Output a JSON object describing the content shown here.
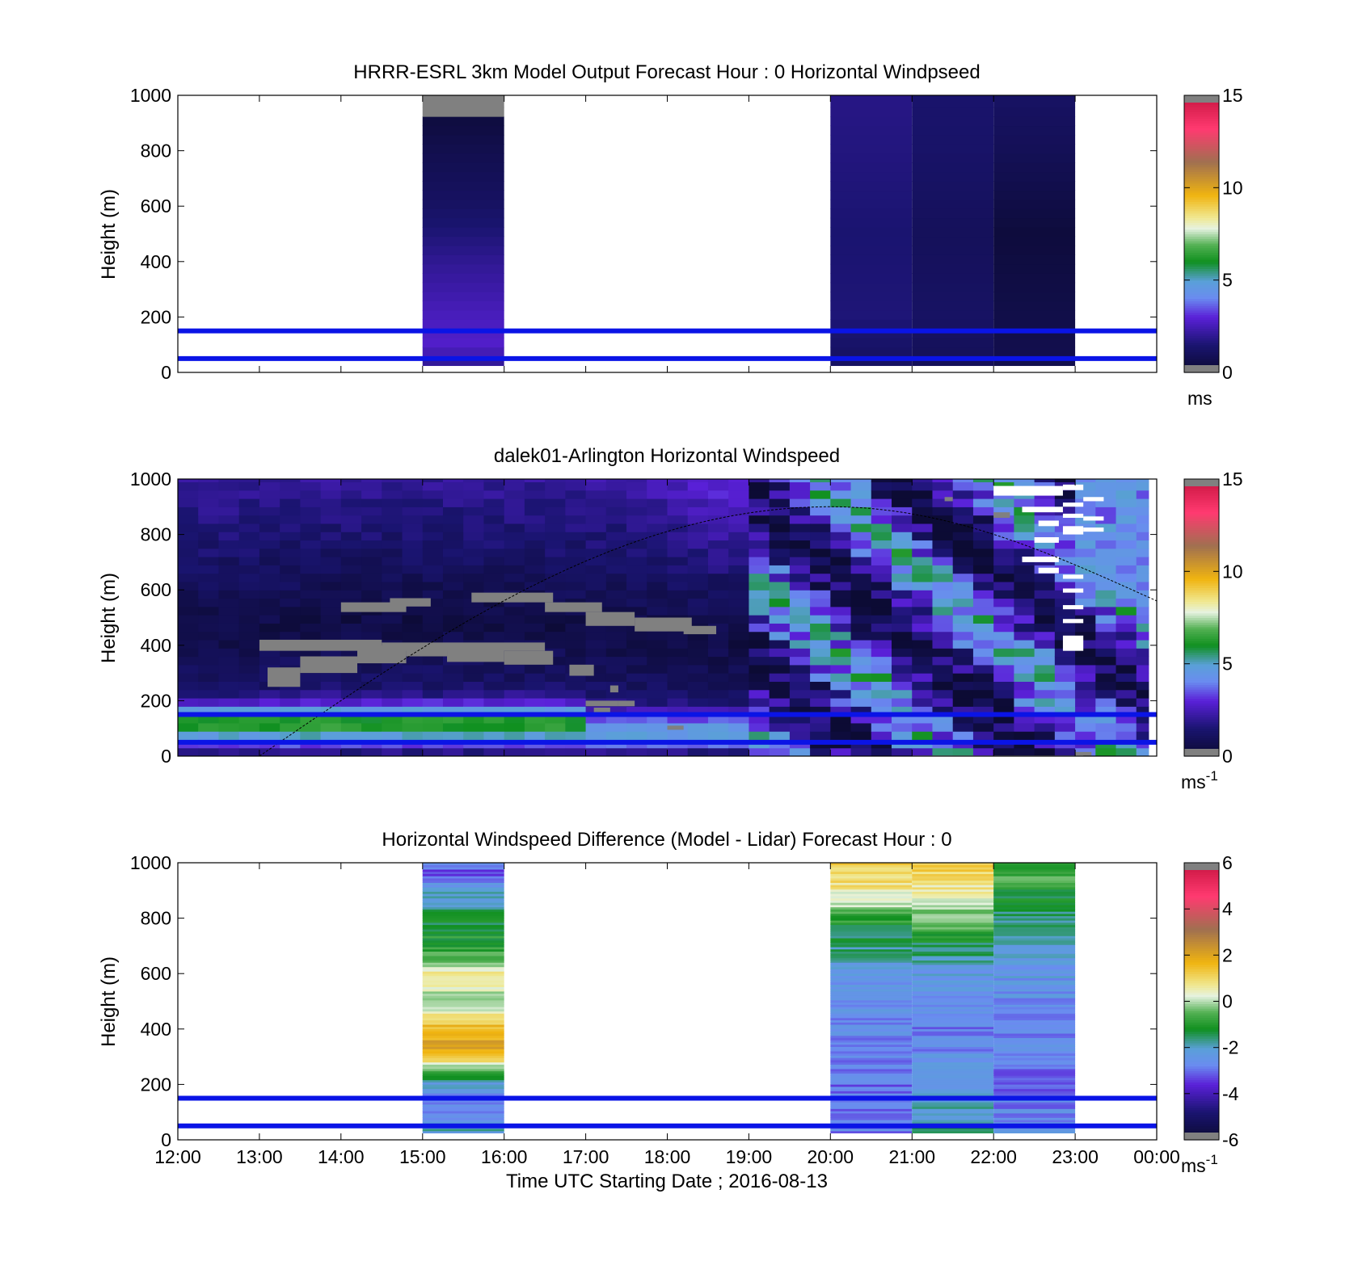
{
  "colors": {
    "reference_line": "#0a14e6",
    "missing": "#808080",
    "axis": "#000000"
  },
  "chart_data": [
    {
      "type": "heatmap",
      "id": "model",
      "title": "HRRR-ESRL 3km Model Output   Forecast Hour : 0 Horizontal Windpseed",
      "ylabel": "Height (m)",
      "ylim": [
        0,
        1000
      ],
      "yticks": [
        "0",
        "200",
        "400",
        "600",
        "800",
        "1000"
      ],
      "xlim": [
        12,
        24
      ],
      "reference_lines_m": [
        50,
        150
      ],
      "colorbar": {
        "min": 0,
        "max": 15,
        "ticks": [
          "0",
          "5",
          "10",
          "15"
        ],
        "unit": "ms",
        "unit_sup": ""
      },
      "columns": [
        {
          "x_start": 15,
          "x_end": 16,
          "profile": [
            [
              25,
              1.9
            ],
            [
              100,
              2.8
            ],
            [
              200,
              2.6
            ],
            [
              400,
              2.0
            ],
            [
              600,
              1.2
            ],
            [
              800,
              0.7
            ],
            [
              900,
              0.4
            ]
          ],
          "missing_above": 900
        },
        {
          "x_start": 20,
          "x_end": 21,
          "profile": [
            [
              25,
              1.1
            ],
            [
              200,
              1.6
            ],
            [
              500,
              1.5
            ],
            [
              800,
              1.7
            ],
            [
              1000,
              1.8
            ]
          ]
        },
        {
          "x_start": 21,
          "x_end": 22,
          "profile": [
            [
              25,
              0.9
            ],
            [
              200,
              1.2
            ],
            [
              500,
              1.0
            ],
            [
              800,
              1.3
            ],
            [
              1000,
              1.4
            ]
          ]
        },
        {
          "x_start": 22,
          "x_end": 23,
          "profile": [
            [
              25,
              0.7
            ],
            [
              200,
              0.6
            ],
            [
              500,
              0.3
            ],
            [
              800,
              0.9
            ],
            [
              1000,
              1.2
            ]
          ]
        }
      ]
    },
    {
      "type": "heatmap",
      "id": "lidar",
      "title": "dalek01-Arlington  Horizontal Windspeed",
      "ylabel": "Height (m)",
      "ylim": [
        0,
        1000
      ],
      "yticks": [
        "0",
        "200",
        "400",
        "600",
        "800",
        "1000"
      ],
      "xlim": [
        12,
        24
      ],
      "reference_lines_m": [
        50,
        150
      ],
      "colorbar": {
        "min": 0,
        "max": 15,
        "ticks": [
          "0",
          "5",
          "10",
          "15"
        ],
        "unit": "ms",
        "unit_sup": "-1"
      },
      "time_step_h": 0.25,
      "data_until_h": 23.9,
      "missing_segments": [
        {
          "x_start": 12.5,
          "x_end": 12.0,
          "z": 0
        },
        {
          "x_start": 13.1,
          "x_end": 13.6,
          "z": 300
        },
        {
          "x_start": 13.3,
          "x_end": 14.0,
          "z": 360
        },
        {
          "x_start": 13.6,
          "x_end": 14.6,
          "z": 400
        },
        {
          "x_start": 14.8,
          "x_end": 15.5,
          "z": 370
        },
        {
          "x_start": 15.3,
          "x_end": 16.3,
          "z": 390
        },
        {
          "x_start": 16.2,
          "x_end": 16.6,
          "z": 360
        },
        {
          "x_start": 18.0,
          "x_end": 18.1,
          "z": 0
        },
        {
          "x_start": 12.0,
          "x_end": 12.0,
          "z": 0
        }
      ],
      "missing_bands": [
        {
          "x_start": 14.0,
          "x_end": 14.8,
          "z_start": 520,
          "z_end": 555
        },
        {
          "x_start": 14.6,
          "x_end": 15.1,
          "z_start": 540,
          "z_end": 570
        },
        {
          "x_start": 15.6,
          "x_end": 16.6,
          "z_start": 555,
          "z_end": 590
        },
        {
          "x_start": 16.5,
          "x_end": 17.2,
          "z_start": 520,
          "z_end": 555
        },
        {
          "x_start": 17.0,
          "x_end": 17.6,
          "z_start": 470,
          "z_end": 520
        },
        {
          "x_start": 17.6,
          "x_end": 18.3,
          "z_start": 450,
          "z_end": 500
        },
        {
          "x_start": 18.2,
          "x_end": 18.6,
          "z_start": 440,
          "z_end": 470
        },
        {
          "x_start": 13.0,
          "x_end": 14.5,
          "z_start": 380,
          "z_end": 420
        },
        {
          "x_start": 14.5,
          "x_end": 16.5,
          "z_start": 380,
          "z_end": 410
        },
        {
          "x_start": 13.1,
          "x_end": 13.5,
          "z_start": 250,
          "z_end": 320
        },
        {
          "x_start": 13.5,
          "x_end": 14.2,
          "z_start": 300,
          "z_end": 360
        },
        {
          "x_start": 14.2,
          "x_end": 14.8,
          "z_start": 335,
          "z_end": 400
        },
        {
          "x_start": 14.8,
          "x_end": 15.3,
          "z_start": 360,
          "z_end": 390
        },
        {
          "x_start": 15.3,
          "x_end": 16.0,
          "z_start": 340,
          "z_end": 400
        },
        {
          "x_start": 16.0,
          "x_end": 16.6,
          "z_start": 330,
          "z_end": 380
        },
        {
          "x_start": 16.8,
          "x_end": 17.1,
          "z_start": 290,
          "z_end": 330
        },
        {
          "x_start": 17.0,
          "x_end": 17.4,
          "z_start": 180,
          "z_end": 200
        },
        {
          "x_start": 17.4,
          "x_end": 17.6,
          "z_start": 180,
          "z_end": 200
        },
        {
          "x_start": 17.3,
          "x_end": 17.4,
          "z_start": 230,
          "z_end": 255
        },
        {
          "x_start": 17.1,
          "x_end": 17.3,
          "z_start": 150,
          "z_end": 175
        },
        {
          "x_start": 18.0,
          "x_end": 18.2,
          "z_start": 95,
          "z_end": 110
        },
        {
          "x_start": 22.0,
          "x_end": 22.2,
          "z_start": 860,
          "z_end": 880
        },
        {
          "x_start": 21.4,
          "x_end": 21.5,
          "z_start": 920,
          "z_end": 935
        },
        {
          "x_start": 23.0,
          "x_end": 23.2,
          "z_start": 0,
          "z_end": 15
        }
      ],
      "empty_bands": [
        {
          "x_start": 22.35,
          "x_end": 22.85,
          "z_start": 940,
          "z_end": 975
        },
        {
          "x_start": 22.35,
          "x_end": 22.85,
          "z_start": 880,
          "z_end": 900
        },
        {
          "x_start": 22.55,
          "x_end": 22.8,
          "z_start": 830,
          "z_end": 850
        },
        {
          "x_start": 22.5,
          "x_end": 22.8,
          "z_start": 770,
          "z_end": 790
        },
        {
          "x_start": 22.35,
          "x_end": 22.8,
          "z_start": 700,
          "z_end": 720
        },
        {
          "x_start": 22.55,
          "x_end": 22.8,
          "z_start": 660,
          "z_end": 680
        },
        {
          "x_start": 22.85,
          "x_end": 23.1,
          "z_start": 960,
          "z_end": 980
        },
        {
          "x_start": 22.85,
          "x_end": 23.1,
          "z_start": 900,
          "z_end": 915
        },
        {
          "x_start": 22.85,
          "x_end": 23.1,
          "z_start": 860,
          "z_end": 875
        },
        {
          "x_start": 22.85,
          "x_end": 23.1,
          "z_start": 800,
          "z_end": 830
        },
        {
          "x_start": 22.85,
          "x_end": 23.1,
          "z_start": 640,
          "z_end": 655
        },
        {
          "x_start": 22.85,
          "x_end": 23.1,
          "z_start": 590,
          "z_end": 605
        },
        {
          "x_start": 22.85,
          "x_end": 23.1,
          "z_start": 530,
          "z_end": 545
        },
        {
          "x_start": 22.85,
          "x_end": 23.1,
          "z_start": 480,
          "z_end": 495
        },
        {
          "x_start": 22.85,
          "x_end": 23.1,
          "z_start": 380,
          "z_end": 435
        },
        {
          "x_start": 23.1,
          "x_end": 23.35,
          "z_start": 920,
          "z_end": 935
        },
        {
          "x_start": 23.1,
          "x_end": 23.35,
          "z_start": 850,
          "z_end": 865
        },
        {
          "x_start": 23.1,
          "x_end": 23.35,
          "z_start": 810,
          "z_end": 825
        },
        {
          "x_start": 22.0,
          "x_end": 22.35,
          "z_start": 940,
          "z_end": 975
        },
        {
          "x_start": 21.0,
          "x_end": 23.1,
          "z_start": 0,
          "z_end": 2
        }
      ],
      "zenith_curve": {
        "x_start": 13.0,
        "x_peak": 20.0,
        "z_peak": 900,
        "x_end": 24.0,
        "z_end": 560
      }
    },
    {
      "type": "heatmap",
      "id": "difference",
      "title": "Horizontal Windspeed Difference (Model - Lidar) Forecast Hour : 0",
      "ylabel": "Height (m)",
      "xlabel": "Time UTC  Starting Date ; 2016-08-13",
      "ylim": [
        0,
        1000
      ],
      "yticks": [
        "0",
        "200",
        "400",
        "600",
        "800",
        "1000"
      ],
      "xlim": [
        12,
        24
      ],
      "xticks": [
        "12:00",
        "13:00",
        "14:00",
        "15:00",
        "16:00",
        "17:00",
        "18:00",
        "19:00",
        "20:00",
        "21:00",
        "22:00",
        "23:00",
        "00:00"
      ],
      "reference_lines_m": [
        50,
        150
      ],
      "colorbar": {
        "min": -6,
        "max": 6,
        "ticks": [
          "-6",
          "-4",
          "-2",
          "0",
          "2",
          "4",
          "6"
        ],
        "unit": "ms",
        "unit_sup": "-1"
      },
      "columns": [
        {
          "x_start": 15,
          "x_end": 16,
          "profile": [
            [
              25,
              -1.8
            ],
            [
              100,
              -3.0
            ],
            [
              200,
              -2.2
            ],
            [
              260,
              -0.5
            ],
            [
              300,
              1.6
            ],
            [
              350,
              2.0
            ],
            [
              420,
              1.4
            ],
            [
              460,
              0.4
            ],
            [
              520,
              -0.2
            ],
            [
              560,
              0.4
            ],
            [
              600,
              0.6
            ],
            [
              650,
              -0.5
            ],
            [
              700,
              -0.9
            ],
            [
              800,
              -1.4
            ],
            [
              900,
              -2.0
            ],
            [
              950,
              -3.2
            ],
            [
              1000,
              -3.0
            ]
          ]
        },
        {
          "x_start": 20,
          "x_end": 21,
          "profile": [
            [
              25,
              -2.8
            ],
            [
              200,
              -3.0
            ],
            [
              400,
              -2.8
            ],
            [
              600,
              -2.3
            ],
            [
              700,
              -1.6
            ],
            [
              800,
              -0.9
            ],
            [
              850,
              -0.1
            ],
            [
              900,
              0.6
            ],
            [
              950,
              1.0
            ],
            [
              1000,
              1.3
            ]
          ]
        },
        {
          "x_start": 21,
          "x_end": 22,
          "profile": [
            [
              25,
              -1.5
            ],
            [
              200,
              -2.4
            ],
            [
              400,
              -2.9
            ],
            [
              600,
              -2.3
            ],
            [
              700,
              -1.4
            ],
            [
              800,
              -0.3
            ],
            [
              900,
              0.6
            ],
            [
              950,
              1.0
            ],
            [
              1000,
              1.2
            ]
          ]
        },
        {
          "x_start": 22,
          "x_end": 23,
          "profile": [
            [
              25,
              -2.6
            ],
            [
              200,
              -3.0
            ],
            [
              400,
              -2.7
            ],
            [
              600,
              -2.4
            ],
            [
              700,
              -2.1
            ],
            [
              800,
              -1.7
            ],
            [
              900,
              -1.0
            ],
            [
              950,
              -0.6
            ],
            [
              1000,
              -1.2
            ]
          ]
        }
      ]
    }
  ]
}
